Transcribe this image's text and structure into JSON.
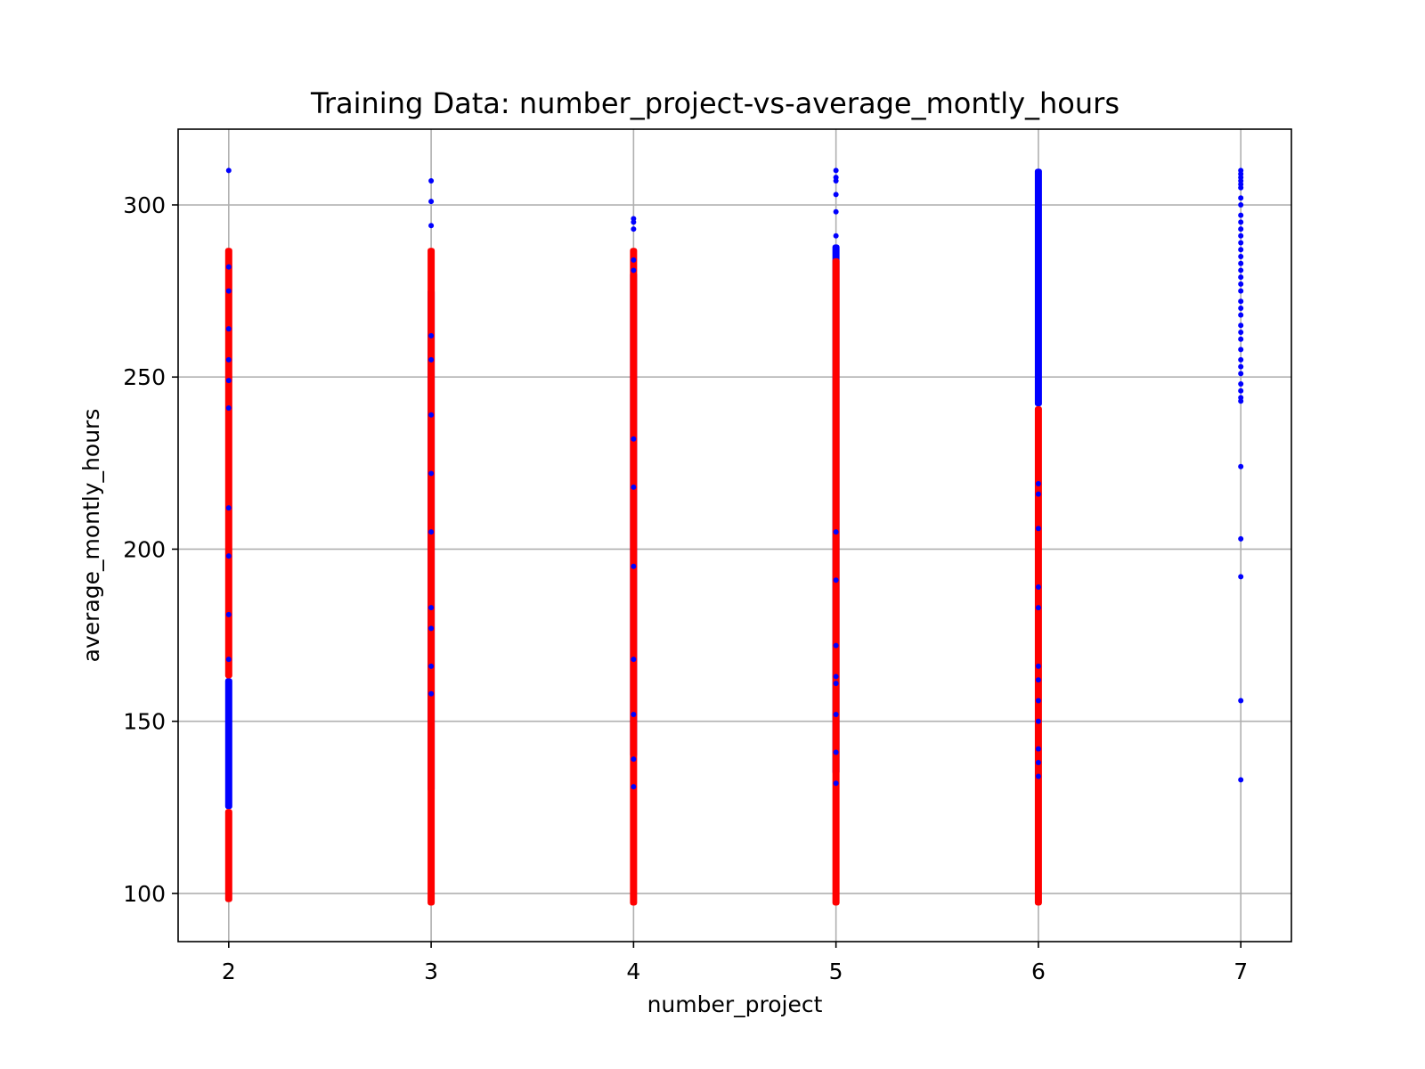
{
  "chart_data": {
    "type": "scatter",
    "title": "Training Data: number_project-vs-average_montly_hours",
    "xlabel": "number_project",
    "ylabel": "average_montly_hours",
    "xlim": [
      1.75,
      7.25
    ],
    "ylim": [
      86,
      322
    ],
    "x_ticks": [
      2,
      3,
      4,
      5,
      6,
      7
    ],
    "y_ticks": [
      100,
      150,
      200,
      250,
      300
    ],
    "grid": true,
    "legend": "none",
    "colors": {
      "blue": "#0000ff",
      "red": "#ff0000"
    },
    "series": [
      {
        "color": "#0000ff",
        "strips": [
          {
            "x": 2,
            "from": 125,
            "to": 162
          },
          {
            "x": 3,
            "from": 130,
            "to": 275
          },
          {
            "x": 4,
            "from": 140,
            "to": 280
          },
          {
            "x": 5,
            "from": 135,
            "to": 288
          },
          {
            "x": 6,
            "from": 242,
            "to": 310
          }
        ],
        "points": [
          {
            "x": 2,
            "y": 310
          },
          {
            "x": 2,
            "y": 282
          },
          {
            "x": 2,
            "y": 275
          },
          {
            "x": 2,
            "y": 264
          },
          {
            "x": 2,
            "y": 255
          },
          {
            "x": 2,
            "y": 249
          },
          {
            "x": 2,
            "y": 241
          },
          {
            "x": 2,
            "y": 212
          },
          {
            "x": 2,
            "y": 198
          },
          {
            "x": 2,
            "y": 181
          },
          {
            "x": 2,
            "y": 168
          },
          {
            "x": 3,
            "y": 307
          },
          {
            "x": 3,
            "y": 301
          },
          {
            "x": 3,
            "y": 294
          },
          {
            "x": 3,
            "y": 262
          },
          {
            "x": 3,
            "y": 255
          },
          {
            "x": 3,
            "y": 239
          },
          {
            "x": 3,
            "y": 222
          },
          {
            "x": 3,
            "y": 205
          },
          {
            "x": 3,
            "y": 183
          },
          {
            "x": 3,
            "y": 177
          },
          {
            "x": 3,
            "y": 166
          },
          {
            "x": 3,
            "y": 158
          },
          {
            "x": 4,
            "y": 296
          },
          {
            "x": 4,
            "y": 295
          },
          {
            "x": 4,
            "y": 293
          },
          {
            "x": 4,
            "y": 284
          },
          {
            "x": 4,
            "y": 281
          },
          {
            "x": 4,
            "y": 232
          },
          {
            "x": 4,
            "y": 218
          },
          {
            "x": 4,
            "y": 195
          },
          {
            "x": 4,
            "y": 168
          },
          {
            "x": 4,
            "y": 152
          },
          {
            "x": 4,
            "y": 139
          },
          {
            "x": 4,
            "y": 131
          },
          {
            "x": 5,
            "y": 310
          },
          {
            "x": 5,
            "y": 308
          },
          {
            "x": 5,
            "y": 307
          },
          {
            "x": 5,
            "y": 303
          },
          {
            "x": 5,
            "y": 298
          },
          {
            "x": 5,
            "y": 291
          },
          {
            "x": 5,
            "y": 205
          },
          {
            "x": 5,
            "y": 191
          },
          {
            "x": 5,
            "y": 172
          },
          {
            "x": 5,
            "y": 163
          },
          {
            "x": 5,
            "y": 161
          },
          {
            "x": 5,
            "y": 152
          },
          {
            "x": 5,
            "y": 141
          },
          {
            "x": 5,
            "y": 132
          },
          {
            "x": 6,
            "y": 219
          },
          {
            "x": 6,
            "y": 216
          },
          {
            "x": 6,
            "y": 206
          },
          {
            "x": 6,
            "y": 189
          },
          {
            "x": 6,
            "y": 183
          },
          {
            "x": 6,
            "y": 166
          },
          {
            "x": 6,
            "y": 162
          },
          {
            "x": 6,
            "y": 156
          },
          {
            "x": 6,
            "y": 150
          },
          {
            "x": 6,
            "y": 142
          },
          {
            "x": 6,
            "y": 138
          },
          {
            "x": 6,
            "y": 134
          },
          {
            "x": 7,
            "y": 310
          },
          {
            "x": 7,
            "y": 309
          },
          {
            "x": 7,
            "y": 308
          },
          {
            "x": 7,
            "y": 307
          },
          {
            "x": 7,
            "y": 306
          },
          {
            "x": 7,
            "y": 305
          },
          {
            "x": 7,
            "y": 302
          },
          {
            "x": 7,
            "y": 300
          },
          {
            "x": 7,
            "y": 297
          },
          {
            "x": 7,
            "y": 295
          },
          {
            "x": 7,
            "y": 293
          },
          {
            "x": 7,
            "y": 291
          },
          {
            "x": 7,
            "y": 289
          },
          {
            "x": 7,
            "y": 287
          },
          {
            "x": 7,
            "y": 285
          },
          {
            "x": 7,
            "y": 283
          },
          {
            "x": 7,
            "y": 281
          },
          {
            "x": 7,
            "y": 279
          },
          {
            "x": 7,
            "y": 277
          },
          {
            "x": 7,
            "y": 275
          },
          {
            "x": 7,
            "y": 272
          },
          {
            "x": 7,
            "y": 270
          },
          {
            "x": 7,
            "y": 268
          },
          {
            "x": 7,
            "y": 265
          },
          {
            "x": 7,
            "y": 263
          },
          {
            "x": 7,
            "y": 261
          },
          {
            "x": 7,
            "y": 258
          },
          {
            "x": 7,
            "y": 255
          },
          {
            "x": 7,
            "y": 253
          },
          {
            "x": 7,
            "y": 251
          },
          {
            "x": 7,
            "y": 248
          },
          {
            "x": 7,
            "y": 246
          },
          {
            "x": 7,
            "y": 244
          },
          {
            "x": 7,
            "y": 243
          },
          {
            "x": 7,
            "y": 224
          },
          {
            "x": 7,
            "y": 203
          },
          {
            "x": 7,
            "y": 192
          },
          {
            "x": 7,
            "y": 156
          },
          {
            "x": 7,
            "y": 133
          }
        ]
      },
      {
        "color": "#ff0000",
        "strips": [
          {
            "x": 2,
            "from": 98,
            "to": 124
          },
          {
            "x": 2,
            "from": 163,
            "to": 287
          },
          {
            "x": 3,
            "from": 97,
            "to": 287
          },
          {
            "x": 4,
            "from": 97,
            "to": 287
          },
          {
            "x": 5,
            "from": 97,
            "to": 284
          },
          {
            "x": 6,
            "from": 97,
            "to": 241
          }
        ],
        "points": []
      }
    ]
  }
}
